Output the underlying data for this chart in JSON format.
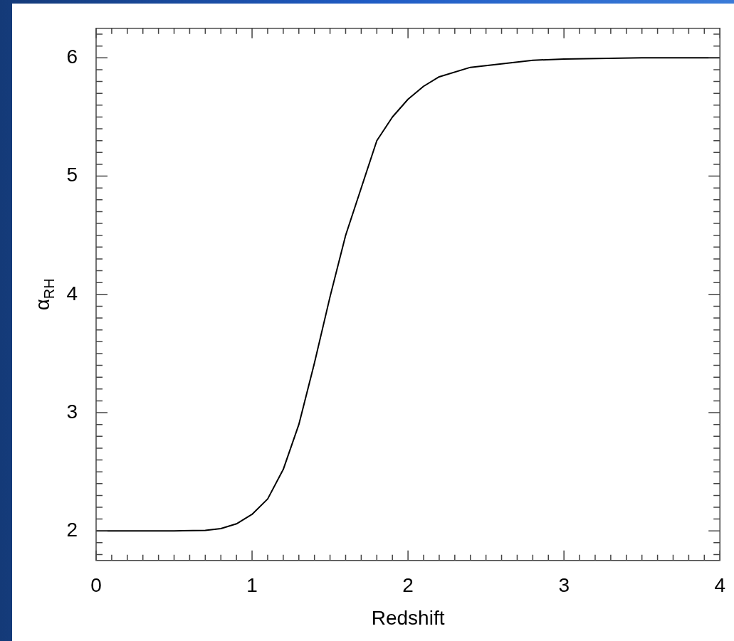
{
  "chart_data": {
    "type": "line",
    "xlabel": "Redshift",
    "ylabel": "α$_{RH}$",
    "x": [
      0,
      0.5,
      0.7,
      0.8,
      0.9,
      1.0,
      1.1,
      1.2,
      1.3,
      1.4,
      1.5,
      1.6,
      1.7,
      1.8,
      1.9,
      2.0,
      2.1,
      2.2,
      2.4,
      2.6,
      2.8,
      3.0,
      3.5,
      4.0
    ],
    "series": [
      {
        "color": "#000000",
        "values": [
          2,
          2,
          2.005,
          2.02,
          2.06,
          2.14,
          2.27,
          2.52,
          2.9,
          3.42,
          3.98,
          4.5,
          4.9,
          5.3,
          5.5,
          5.65,
          5.76,
          5.84,
          5.92,
          5.95,
          5.98,
          5.99,
          6,
          6
        ]
      }
    ],
    "xlim": [
      0,
      4
    ],
    "ylim": [
      1.75,
      6.25
    ],
    "xticks": [
      0,
      {
        "value": 0.1,
        "label": null
      },
      {
        "value": 0.2,
        "label": null
      },
      {
        "value": 0.3,
        "label": null
      },
      {
        "value": 0.4,
        "label": null
      },
      {
        "value": 0.5,
        "label": null
      },
      {
        "value": 0.6,
        "label": null
      },
      {
        "value": 0.7,
        "label": null
      },
      {
        "value": 0.8,
        "label": null
      },
      {
        "value": 0.9,
        "label": null
      },
      1,
      {
        "value": 1.1,
        "label": null
      },
      {
        "value": 1.2,
        "label": null
      },
      {
        "value": 1.3,
        "label": null
      },
      {
        "value": 1.4,
        "label": null
      },
      {
        "value": 1.5,
        "label": null
      },
      {
        "value": 1.6,
        "label": null
      },
      {
        "value": 1.7,
        "label": null
      },
      {
        "value": 1.8,
        "label": null
      },
      {
        "value": 1.9,
        "label": null
      },
      2,
      {
        "value": 2.1,
        "label": null
      },
      {
        "value": 2.2,
        "label": null
      },
      {
        "value": 2.3,
        "label": null
      },
      {
        "value": 2.4,
        "label": null
      },
      {
        "value": 2.5,
        "label": null
      },
      {
        "value": 2.6,
        "label": null
      },
      {
        "value": 2.7,
        "label": null
      },
      {
        "value": 2.8,
        "label": null
      },
      {
        "value": 2.9,
        "label": null
      },
      3,
      {
        "value": 3.1,
        "label": null
      },
      {
        "value": 3.2,
        "label": null
      },
      {
        "value": 3.3,
        "label": null
      },
      {
        "value": 3.4,
        "label": null
      },
      {
        "value": 3.5,
        "label": null
      },
      {
        "value": 3.6,
        "label": null
      },
      {
        "value": 3.7,
        "label": null
      },
      {
        "value": 3.8,
        "label": null
      },
      {
        "value": 3.9,
        "label": null
      },
      4
    ],
    "yticks": [
      {
        "value": 1.8,
        "label": null
      },
      {
        "value": 1.9,
        "label": null
      },
      2,
      {
        "value": 2.1,
        "label": null
      },
      {
        "value": 2.2,
        "label": null
      },
      {
        "value": 2.3,
        "label": null
      },
      {
        "value": 2.4,
        "label": null
      },
      {
        "value": 2.5,
        "label": null
      },
      {
        "value": 2.6,
        "label": null
      },
      {
        "value": 2.7,
        "label": null
      },
      {
        "value": 2.8,
        "label": null
      },
      {
        "value": 2.9,
        "label": null
      },
      3,
      {
        "value": 3.1,
        "label": null
      },
      {
        "value": 3.2,
        "label": null
      },
      {
        "value": 3.3,
        "label": null
      },
      {
        "value": 3.4,
        "label": null
      },
      {
        "value": 3.5,
        "label": null
      },
      {
        "value": 3.6,
        "label": null
      },
      {
        "value": 3.7,
        "label": null
      },
      {
        "value": 3.8,
        "label": null
      },
      {
        "value": 3.9,
        "label": null
      },
      4,
      {
        "value": 4.1,
        "label": null
      },
      {
        "value": 4.2,
        "label": null
      },
      {
        "value": 4.3,
        "label": null
      },
      {
        "value": 4.4,
        "label": null
      },
      {
        "value": 4.5,
        "label": null
      },
      {
        "value": 4.6,
        "label": null
      },
      {
        "value": 4.7,
        "label": null
      },
      {
        "value": 4.8,
        "label": null
      },
      {
        "value": 4.9,
        "label": null
      },
      5,
      {
        "value": 5.1,
        "label": null
      },
      {
        "value": 5.2,
        "label": null
      },
      {
        "value": 5.3,
        "label": null
      },
      {
        "value": 5.4,
        "label": null
      },
      {
        "value": 5.5,
        "label": null
      },
      {
        "value": 5.6,
        "label": null
      },
      {
        "value": 5.7,
        "label": null
      },
      {
        "value": 5.8,
        "label": null
      },
      {
        "value": 5.9,
        "label": null
      },
      6,
      {
        "value": 6.1,
        "label": null
      },
      {
        "value": 6.2,
        "label": null
      }
    ],
    "grid": false,
    "marker": "none",
    "line_style": "solid",
    "legend": false
  }
}
